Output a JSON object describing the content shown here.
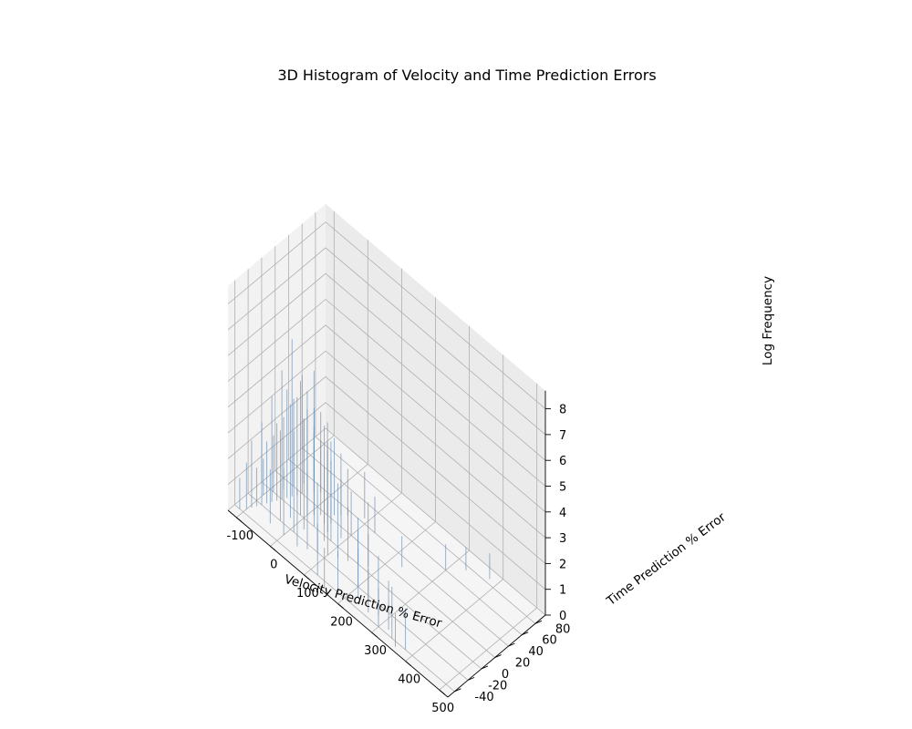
{
  "chart_data": {
    "type": "bar3d",
    "title": "3D Histogram of Velocity and Time Prediction Errors",
    "xlabel": "Velocity Prediction % Error",
    "ylabel": "Time Prediction % Error",
    "zlabel": "Log Frequency",
    "xlim": [
      -125,
      525
    ],
    "ylim": [
      -50,
      95
    ],
    "zlim": [
      0,
      8.7
    ],
    "x_ticks": [
      "-100",
      "0",
      "100",
      "200",
      "300",
      "400",
      "500"
    ],
    "y_ticks": [
      "-40",
      "-20",
      "0",
      "20",
      "40",
      "60",
      "80"
    ],
    "z_ticks": [
      "0",
      "1",
      "2",
      "3",
      "4",
      "5",
      "6",
      "7",
      "8"
    ],
    "bar_color": "#6e8fb0",
    "pane_colors": {
      "left": "#f2f2f2",
      "right": "#ebebeb",
      "floor": "#f5f5f5"
    },
    "bars": [
      {
        "x": -110,
        "y": -40,
        "z": 1.2
      },
      {
        "x": -100,
        "y": -35,
        "z": 1.8
      },
      {
        "x": -95,
        "y": -30,
        "z": 2.6
      },
      {
        "x": -90,
        "y": -25,
        "z": 1.5
      },
      {
        "x": -85,
        "y": -20,
        "z": 3.2
      },
      {
        "x": -80,
        "y": -15,
        "z": 2.4
      },
      {
        "x": -75,
        "y": -10,
        "z": 4.1
      },
      {
        "x": -70,
        "y": -5,
        "z": 3.0
      },
      {
        "x": -65,
        "y": 0,
        "z": 5.0
      },
      {
        "x": -60,
        "y": 5,
        "z": 4.2
      },
      {
        "x": -55,
        "y": 10,
        "z": 6.1
      },
      {
        "x": -50,
        "y": 15,
        "z": 3.8
      },
      {
        "x": -45,
        "y": 20,
        "z": 4.6
      },
      {
        "x": -40,
        "y": 25,
        "z": 3.2
      },
      {
        "x": -30,
        "y": 30,
        "z": 2.6
      },
      {
        "x": -20,
        "y": 35,
        "z": 2.0
      },
      {
        "x": -10,
        "y": 40,
        "z": 1.6
      },
      {
        "x": -100,
        "y": -10,
        "z": 1.4
      },
      {
        "x": -90,
        "y": 0,
        "z": 2.2
      },
      {
        "x": -80,
        "y": 10,
        "z": 2.8
      },
      {
        "x": -70,
        "y": 20,
        "z": 3.4
      },
      {
        "x": -60,
        "y": 30,
        "z": 2.5
      },
      {
        "x": -50,
        "y": 40,
        "z": 1.9
      },
      {
        "x": -40,
        "y": -30,
        "z": 2.1
      },
      {
        "x": -30,
        "y": -20,
        "z": 3.5
      },
      {
        "x": -20,
        "y": -10,
        "z": 4.4
      },
      {
        "x": -10,
        "y": 0,
        "z": 5.2
      },
      {
        "x": 0,
        "y": 5,
        "z": 4.8
      },
      {
        "x": 10,
        "y": 10,
        "z": 5.6
      },
      {
        "x": 20,
        "y": 15,
        "z": 4.0
      },
      {
        "x": 30,
        "y": 20,
        "z": 3.6
      },
      {
        "x": 40,
        "y": 25,
        "z": 3.0
      },
      {
        "x": 50,
        "y": 30,
        "z": 2.4
      },
      {
        "x": 60,
        "y": 35,
        "z": 1.8
      },
      {
        "x": 0,
        "y": -30,
        "z": 2.6
      },
      {
        "x": 10,
        "y": -20,
        "z": 3.9
      },
      {
        "x": 20,
        "y": -10,
        "z": 4.3
      },
      {
        "x": 30,
        "y": 0,
        "z": 4.6
      },
      {
        "x": 40,
        "y": 10,
        "z": 3.8
      },
      {
        "x": 50,
        "y": 15,
        "z": 3.2
      },
      {
        "x": 60,
        "y": 5,
        "z": 3.5
      },
      {
        "x": 70,
        "y": -5,
        "z": 2.9
      },
      {
        "x": 80,
        "y": 0,
        "z": 3.1
      },
      {
        "x": 90,
        "y": 10,
        "z": 2.3
      },
      {
        "x": 100,
        "y": 20,
        "z": 1.7
      },
      {
        "x": 40,
        "y": -30,
        "z": 2.2
      },
      {
        "x": 60,
        "y": -25,
        "z": 3.0
      },
      {
        "x": 80,
        "y": -20,
        "z": 2.7
      },
      {
        "x": 100,
        "y": -15,
        "z": 2.4
      },
      {
        "x": 120,
        "y": -10,
        "z": 2.9
      },
      {
        "x": 140,
        "y": -5,
        "z": 2.1
      },
      {
        "x": 160,
        "y": 0,
        "z": 1.8
      },
      {
        "x": 180,
        "y": 5,
        "z": 2.5
      },
      {
        "x": 200,
        "y": -20,
        "z": 2.2
      },
      {
        "x": 220,
        "y": -30,
        "z": 1.9
      },
      {
        "x": 240,
        "y": -25,
        "z": 2.6
      },
      {
        "x": 260,
        "y": -35,
        "z": 1.7
      },
      {
        "x": 280,
        "y": -30,
        "z": 2.3
      },
      {
        "x": 300,
        "y": -40,
        "z": 1.5
      },
      {
        "x": 320,
        "y": -35,
        "z": 1.9
      },
      {
        "x": 340,
        "y": -40,
        "z": 2.0
      },
      {
        "x": 360,
        "y": -45,
        "z": 1.3
      },
      {
        "x": 380,
        "y": -40,
        "z": 1.6
      },
      {
        "x": 150,
        "y": -45,
        "z": 1.5
      },
      {
        "x": 120,
        "y": -40,
        "z": 2.0
      },
      {
        "x": 180,
        "y": -40,
        "z": 1.6
      },
      {
        "x": 230,
        "y": 30,
        "z": 1.2
      },
      {
        "x": 300,
        "y": 60,
        "z": 1.0
      },
      {
        "x": 330,
        "y": 75,
        "z": 0.9
      },
      {
        "x": 380,
        "y": 85,
        "z": 1.0
      },
      {
        "x": 130,
        "y": 40,
        "z": 1.4
      },
      {
        "x": 90,
        "y": 45,
        "z": 1.8
      }
    ]
  }
}
